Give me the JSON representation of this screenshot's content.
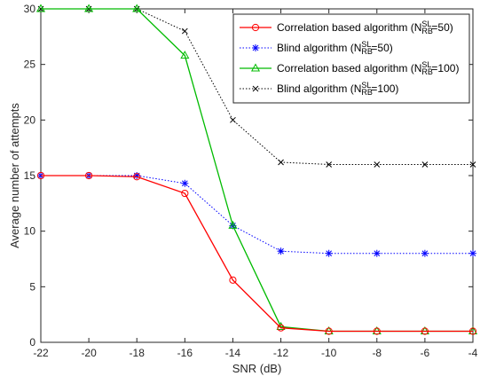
{
  "chart_data": {
    "type": "line",
    "xlabel": "SNR (dB)",
    "ylabel": "Average number of attempts",
    "xlim": [
      -22,
      -4
    ],
    "ylim": [
      0,
      30
    ],
    "x": [
      -22,
      -20,
      -18,
      -16,
      -14,
      -12,
      -10,
      -8,
      -6,
      -4
    ],
    "xticks": [
      "-22",
      "-20",
      "-18",
      "-16",
      "-14",
      "-12",
      "-10",
      "-8",
      "-6",
      "-4"
    ],
    "yticks": [
      "0",
      "5",
      "10",
      "15",
      "20",
      "25",
      "30"
    ],
    "grid": false,
    "legend_position": "top-right",
    "series": [
      {
        "name": "Correlation based algorithm (N_RB^SL=50)",
        "legend": {
          "pre": "Correlation based algorithm (N",
          "sup": "SL",
          "sub": "RB",
          "post": "=50)"
        },
        "color": "#ff0000",
        "line": "solid",
        "marker": "circle",
        "values": [
          15,
          15,
          14.9,
          13.4,
          5.6,
          1.3,
          1.0,
          1.0,
          1.0,
          1.0
        ]
      },
      {
        "name": "Blind algorithm (N_RB^SL=50)",
        "legend": {
          "pre": "Blind algorithm (N",
          "sup": "SL",
          "sub": "RB",
          "post": "=50)"
        },
        "color": "#0000ff",
        "line": "dotted",
        "marker": "asterisk",
        "values": [
          15,
          15,
          15,
          14.3,
          10.5,
          8.2,
          8.0,
          8.0,
          8.0,
          8.0
        ]
      },
      {
        "name": "Correlation based algorithm (N_RB^SL=100)",
        "legend": {
          "pre": "Correlation based algorithm (N",
          "sup": "SL",
          "sub": "RB",
          "post": "=100)"
        },
        "color": "#00bb00",
        "line": "solid",
        "marker": "triangle",
        "values": [
          30,
          30,
          30,
          25.8,
          10.5,
          1.4,
          1.0,
          1.0,
          1.0,
          1.0
        ]
      },
      {
        "name": "Blind algorithm (N_RB^SL=100)",
        "legend": {
          "pre": "Blind algorithm (N",
          "sup": "SL",
          "sub": "RB",
          "post": "=100)"
        },
        "color": "#000000",
        "line": "dotted",
        "marker": "x",
        "values": [
          30,
          30,
          30,
          28,
          20,
          16.2,
          16.0,
          16.0,
          16.0,
          16.0
        ]
      }
    ]
  }
}
